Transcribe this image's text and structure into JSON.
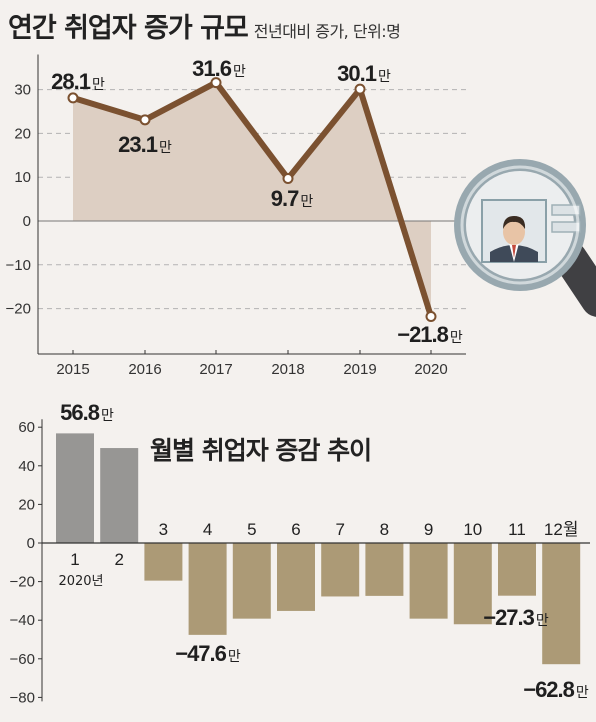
{
  "header": {
    "title": "연간 취업자 증가 규모",
    "subtitle": "전년대비 증가, 단위:명"
  },
  "chart_data": [
    {
      "type": "line",
      "title": "연간 취업자 증가 규모",
      "subtitle": "전년대비 증가, 단위:명",
      "x": [
        "2015",
        "2016",
        "2017",
        "2018",
        "2019",
        "2020"
      ],
      "series": [
        {
          "values": [
            28.1,
            23.1,
            31.6,
            9.7,
            30.1,
            -21.8
          ],
          "color": "#7b5130"
        }
      ],
      "data_labels": [
        "28.1",
        "23.1",
        "31.6",
        "9.7",
        "30.1",
        "−21.8"
      ],
      "label_unit": "만",
      "yticks": [
        30,
        20,
        10,
        0,
        -10,
        -20
      ],
      "ytick_labels": [
        "30",
        "20",
        "10",
        "0",
        "−10",
        "−20"
      ],
      "ylim": [
        -29,
        38
      ],
      "grid": true,
      "area_fill": "#ddcfc3"
    },
    {
      "type": "bar",
      "title": "월별 취업자 증감 추이",
      "categories": [
        "1",
        "2",
        "3",
        "4",
        "5",
        "6",
        "7",
        "8",
        "9",
        "10",
        "11",
        "12월"
      ],
      "year_label": "2020년",
      "values": [
        56.8,
        49.2,
        -19.5,
        -47.6,
        -39.2,
        -35.2,
        -27.7,
        -27.4,
        -39.2,
        -42.1,
        -27.3,
        -62.8
      ],
      "data_labels": {
        "0": "56.8",
        "3": "−47.6",
        "10": "−27.3",
        "11": "−62.8"
      },
      "label_unit": "만",
      "colors": {
        "positive": "#979694",
        "negative": "#ac9a76"
      },
      "yticks": [
        60,
        40,
        20,
        0,
        -20,
        -40,
        -60,
        -80
      ],
      "ytick_labels": [
        "60",
        "40",
        "20",
        "0",
        "−20",
        "−40",
        "−60",
        "−80"
      ],
      "ylim": [
        -80,
        60
      ]
    }
  ]
}
